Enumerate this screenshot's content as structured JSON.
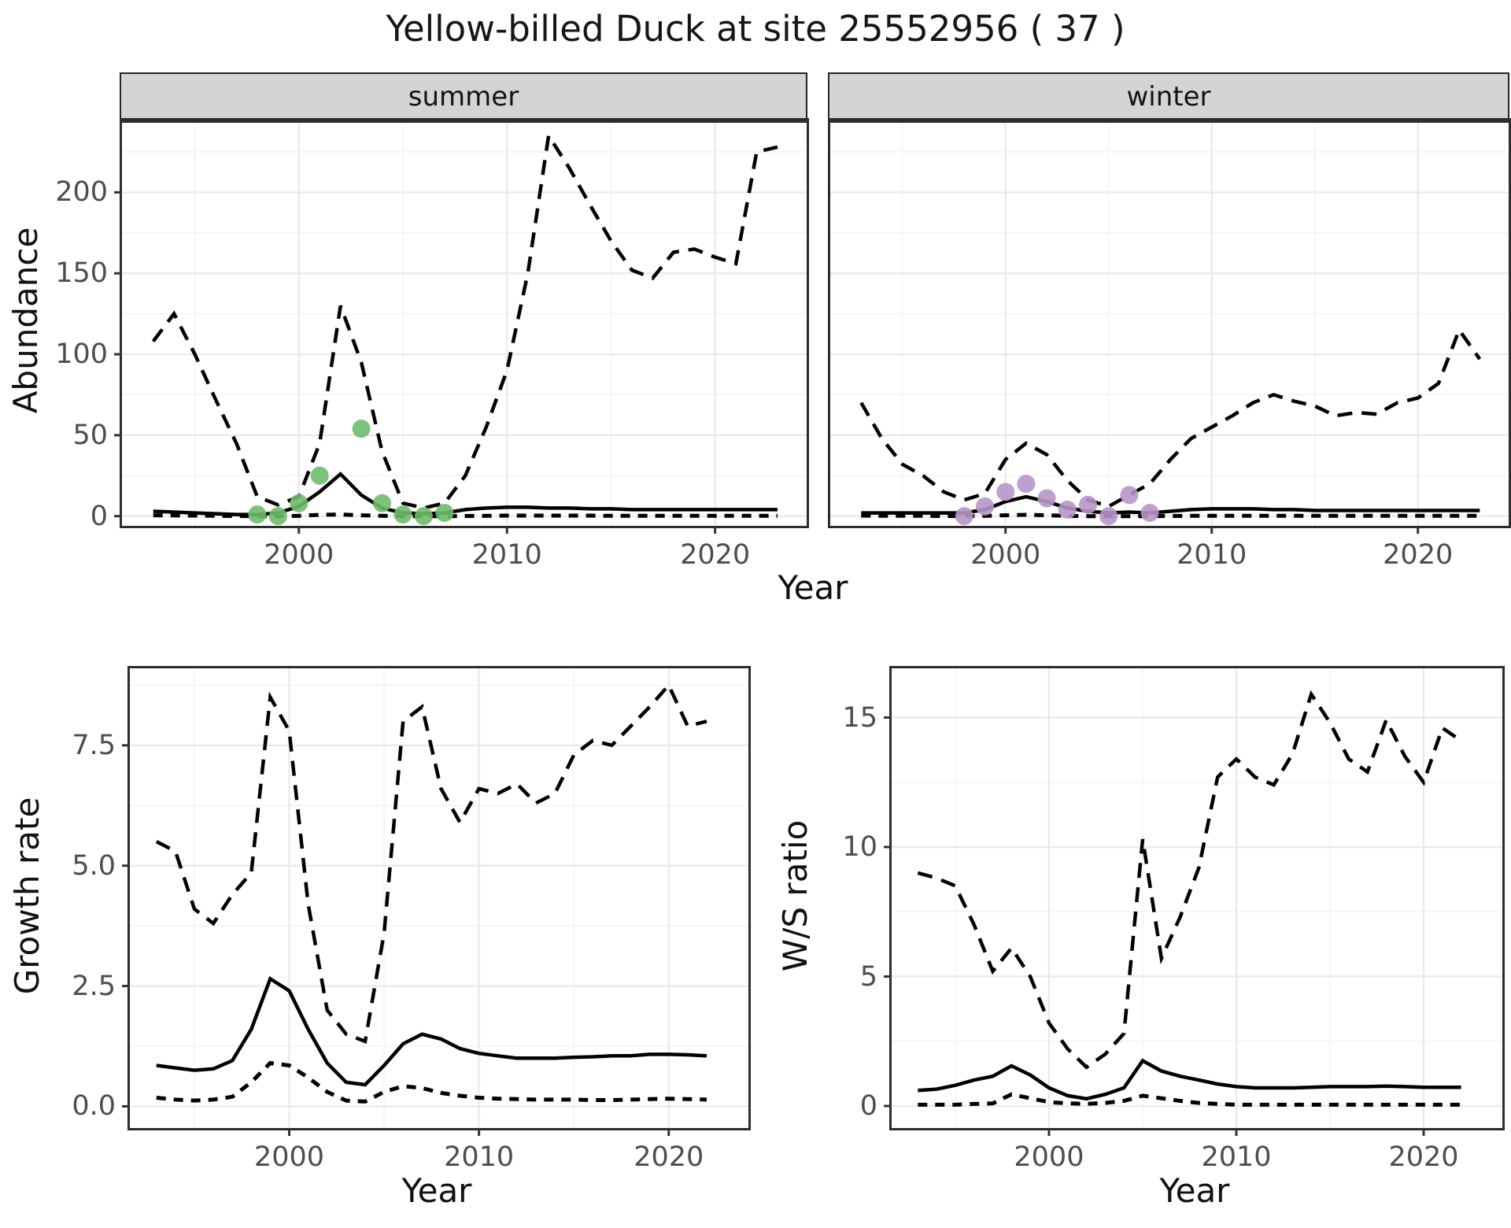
{
  "title": "Yellow-billed Duck at site 25552956 ( 37 )",
  "facets": {
    "summer": "summer",
    "winter": "winter"
  },
  "axis_titles": {
    "abundance": "Abundance",
    "year_top": "Year",
    "growth_rate": "Growth rate",
    "year_growth": "Year",
    "ws_ratio": "W/S ratio",
    "year_ws": "Year"
  },
  "colors": {
    "summer_points": "#6dbd6d",
    "winter_points": "#b795c8",
    "line": "#000000",
    "grid_major": "#e9e9e9",
    "grid_minor": "#f4f4f4",
    "strip_bg": "#d4d4d4",
    "panel_border": "#2d2d2d",
    "tick_mark": "#333333",
    "axis_text": "#4d4d4d",
    "title_text": "#161616"
  },
  "chart_data": [
    {
      "id": "abundance_summer",
      "type": "line",
      "facet_label": "summer",
      "title": "",
      "xlabel": "Year",
      "ylabel": "Abundance",
      "xlim": [
        1991.5,
        2024.4
      ],
      "ylim": [
        -6,
        243
      ],
      "xticks": {
        "values": [
          2000,
          2010,
          2020
        ],
        "labels": [
          "2000",
          "2010",
          "2020"
        ]
      },
      "yticks": {
        "values": [
          0,
          50,
          100,
          150,
          200
        ],
        "labels": [
          "0",
          "50",
          "100",
          "150",
          "200"
        ]
      },
      "show_y_axis": true,
      "grid": true,
      "legend": "none",
      "x": [
        1993,
        1994,
        1995,
        1996,
        1997,
        1998,
        1999,
        2000,
        2001,
        2002,
        2003,
        2004,
        2005,
        2006,
        2007,
        2008,
        2009,
        2010,
        2011,
        2012,
        2013,
        2014,
        2015,
        2016,
        2017,
        2018,
        2019,
        2020,
        2021,
        2022,
        2023
      ],
      "series": [
        {
          "name": "upper_ci",
          "style": "dashed",
          "values": [
            108,
            125,
            100,
            72,
            45,
            12,
            7,
            12,
            45,
            130,
            95,
            40,
            8,
            5,
            8,
            25,
            55,
            90,
            150,
            235,
            215,
            192,
            170,
            152,
            147,
            163,
            165,
            160,
            156,
            225,
            228
          ]
        },
        {
          "name": "lower_ci",
          "style": "dashed_short",
          "values": [
            0.5,
            0.4,
            0.3,
            0.2,
            0.1,
            0,
            0,
            0.2,
            0.8,
            1,
            0.5,
            0.2,
            0,
            0,
            0,
            0.1,
            0.2,
            0.3,
            0.3,
            0.3,
            0.3,
            0.3,
            0.2,
            0.2,
            0.2,
            0.2,
            0.2,
            0.2,
            0.2,
            0.2,
            0.2
          ]
        },
        {
          "name": "model_fit",
          "style": "solid",
          "values": [
            3,
            2.5,
            2,
            1.5,
            1,
            1,
            2,
            6,
            15,
            26,
            13,
            5,
            2,
            1.5,
            2,
            4,
            5,
            5.5,
            5.5,
            5,
            5,
            4.5,
            4.5,
            4,
            4,
            4,
            4,
            4,
            4,
            4,
            4
          ]
        }
      ],
      "points": {
        "color_key": "summer_points",
        "x": [
          1998,
          1999,
          2000,
          2001,
          2003,
          2004,
          2005,
          2006,
          2007
        ],
        "y": [
          1,
          0,
          8,
          25,
          54,
          8,
          1,
          0,
          2
        ]
      }
    },
    {
      "id": "abundance_winter",
      "type": "line",
      "facet_label": "winter",
      "title": "",
      "xlabel": "Year",
      "ylabel": "Abundance",
      "xlim": [
        1991.5,
        2024.4
      ],
      "ylim": [
        -6,
        243
      ],
      "xticks": {
        "values": [
          2000,
          2010,
          2020
        ],
        "labels": [
          "2000",
          "2010",
          "2020"
        ]
      },
      "yticks": {
        "values": [
          0,
          50,
          100,
          150,
          200
        ],
        "labels": [
          "0",
          "50",
          "100",
          "150",
          "200"
        ]
      },
      "show_y_axis": false,
      "grid": true,
      "legend": "none",
      "x": [
        1993,
        1994,
        1995,
        1996,
        1997,
        1998,
        1999,
        2000,
        2001,
        2002,
        2003,
        2004,
        2005,
        2006,
        2007,
        2008,
        2009,
        2010,
        2011,
        2012,
        2013,
        2014,
        2015,
        2016,
        2017,
        2018,
        2019,
        2020,
        2021,
        2022,
        2023
      ],
      "series": [
        {
          "name": "upper_ci",
          "style": "dashed",
          "values": [
            70,
            48,
            32,
            25,
            15,
            10,
            14,
            35,
            45,
            38,
            22,
            10,
            6,
            13,
            20,
            35,
            48,
            55,
            62,
            70,
            75,
            71,
            68,
            62,
            64,
            63,
            70,
            73,
            82,
            115,
            97
          ]
        },
        {
          "name": "lower_ci",
          "style": "dashed_short",
          "values": [
            0.3,
            0.2,
            0.2,
            0.2,
            0.1,
            0,
            0.2,
            0.5,
            0.8,
            0.5,
            0.2,
            0,
            0,
            0,
            0,
            0.1,
            0.2,
            0.2,
            0.2,
            0.2,
            0.2,
            0.2,
            0.2,
            0.2,
            0.2,
            0.2,
            0.2,
            0.2,
            0.2,
            0.2,
            0.2
          ]
        },
        {
          "name": "model_fit",
          "style": "solid",
          "values": [
            2,
            2,
            2,
            2,
            2,
            2,
            4,
            9,
            12,
            9,
            5,
            3,
            2,
            2.5,
            2,
            3,
            4,
            4.5,
            4.5,
            4.5,
            4,
            4,
            3.5,
            3.5,
            3.5,
            3.5,
            3.5,
            3.5,
            3.5,
            3.5,
            3.5
          ]
        }
      ],
      "points": {
        "color_key": "winter_points",
        "x": [
          1998,
          1999,
          2000,
          2001,
          2002,
          2003,
          2004,
          2005,
          2006,
          2007
        ],
        "y": [
          0,
          6,
          15,
          20,
          11,
          4,
          7,
          0,
          13,
          2
        ]
      }
    },
    {
      "id": "growth_rate",
      "type": "line",
      "facet_label": "",
      "title": "",
      "xlabel": "Year",
      "ylabel": "Growth rate",
      "xlim": [
        1991.6,
        2024.2
      ],
      "ylim": [
        -0.45,
        9.1
      ],
      "xticks": {
        "values": [
          2000,
          2010,
          2020
        ],
        "labels": [
          "2000",
          "2010",
          "2020"
        ]
      },
      "yticks": {
        "values": [
          0,
          2.5,
          5,
          7.5
        ],
        "labels": [
          "0.0",
          "2.5",
          "5.0",
          "7.5"
        ]
      },
      "show_y_axis": true,
      "grid": true,
      "legend": "none",
      "x": [
        1993,
        1994,
        1995,
        1996,
        1997,
        1998,
        1999,
        2000,
        2001,
        2002,
        2003,
        2004,
        2005,
        2006,
        2007,
        2008,
        2009,
        2010,
        2011,
        2012,
        2013,
        2014,
        2015,
        2016,
        2017,
        2018,
        2019,
        2020,
        2021,
        2022
      ],
      "series": [
        {
          "name": "upper_ci",
          "style": "dashed",
          "values": [
            5.5,
            5.3,
            4.1,
            3.8,
            4.4,
            4.85,
            8.5,
            7.8,
            4.2,
            2.0,
            1.5,
            1.35,
            3.6,
            8.0,
            8.3,
            6.6,
            5.9,
            6.6,
            6.5,
            6.7,
            6.3,
            6.5,
            7.3,
            7.6,
            7.5,
            7.9,
            8.3,
            8.75,
            7.9,
            8.0
          ]
        },
        {
          "name": "lower_ci",
          "style": "dashed_short",
          "values": [
            0.18,
            0.14,
            0.12,
            0.14,
            0.2,
            0.5,
            0.9,
            0.85,
            0.6,
            0.3,
            0.12,
            0.1,
            0.3,
            0.42,
            0.38,
            0.28,
            0.22,
            0.18,
            0.16,
            0.15,
            0.14,
            0.14,
            0.14,
            0.13,
            0.13,
            0.14,
            0.15,
            0.16,
            0.15,
            0.14
          ]
        },
        {
          "name": "model_fit",
          "style": "solid",
          "values": [
            0.85,
            0.8,
            0.75,
            0.78,
            0.95,
            1.6,
            2.65,
            2.4,
            1.6,
            0.9,
            0.5,
            0.45,
            0.85,
            1.3,
            1.5,
            1.4,
            1.2,
            1.1,
            1.05,
            1.0,
            1.0,
            1.0,
            1.02,
            1.03,
            1.05,
            1.05,
            1.08,
            1.08,
            1.07,
            1.05
          ]
        }
      ],
      "points": null
    },
    {
      "id": "ws_ratio",
      "type": "line",
      "facet_label": "",
      "title": "",
      "xlabel": "Year",
      "ylabel": "W/S ratio",
      "xlim": [
        1991.6,
        2024.2
      ],
      "ylim": [
        -0.85,
        16.9
      ],
      "xticks": {
        "values": [
          2000,
          2010,
          2020
        ],
        "labels": [
          "2000",
          "2010",
          "2020"
        ]
      },
      "yticks": {
        "values": [
          0,
          5,
          10,
          15
        ],
        "labels": [
          "0",
          "5",
          "10",
          "15"
        ]
      },
      "show_y_axis": true,
      "grid": true,
      "legend": "none",
      "x": [
        1993,
        1994,
        1995,
        1996,
        1997,
        1998,
        1999,
        2000,
        2001,
        2002,
        2003,
        2004,
        2005,
        2006,
        2007,
        2008,
        2009,
        2010,
        2011,
        2012,
        2013,
        2014,
        2015,
        2016,
        2017,
        2018,
        2019,
        2020,
        2021,
        2022
      ],
      "series": [
        {
          "name": "upper_ci",
          "style": "dashed",
          "values": [
            9.0,
            8.8,
            8.5,
            7.0,
            5.2,
            6.1,
            5.0,
            3.2,
            2.2,
            1.5,
            2.0,
            2.8,
            10.3,
            5.7,
            7.3,
            9.2,
            12.7,
            13.4,
            12.7,
            12.4,
            13.6,
            15.9,
            14.8,
            13.4,
            12.9,
            14.9,
            13.5,
            12.5,
            14.6,
            14.1
          ]
        },
        {
          "name": "lower_ci",
          "style": "dashed_short",
          "values": [
            0.05,
            0.05,
            0.05,
            0.08,
            0.1,
            0.45,
            0.3,
            0.15,
            0.1,
            0.08,
            0.12,
            0.2,
            0.4,
            0.3,
            0.2,
            0.12,
            0.08,
            0.05,
            0.05,
            0.05,
            0.05,
            0.05,
            0.05,
            0.05,
            0.05,
            0.05,
            0.05,
            0.05,
            0.05,
            0.05
          ]
        },
        {
          "name": "model_fit",
          "style": "solid",
          "values": [
            0.6,
            0.65,
            0.8,
            1.0,
            1.15,
            1.55,
            1.2,
            0.7,
            0.4,
            0.28,
            0.45,
            0.7,
            1.75,
            1.35,
            1.15,
            1.0,
            0.85,
            0.75,
            0.7,
            0.7,
            0.7,
            0.72,
            0.75,
            0.75,
            0.75,
            0.77,
            0.75,
            0.72,
            0.72,
            0.72
          ]
        }
      ],
      "points": null
    }
  ]
}
